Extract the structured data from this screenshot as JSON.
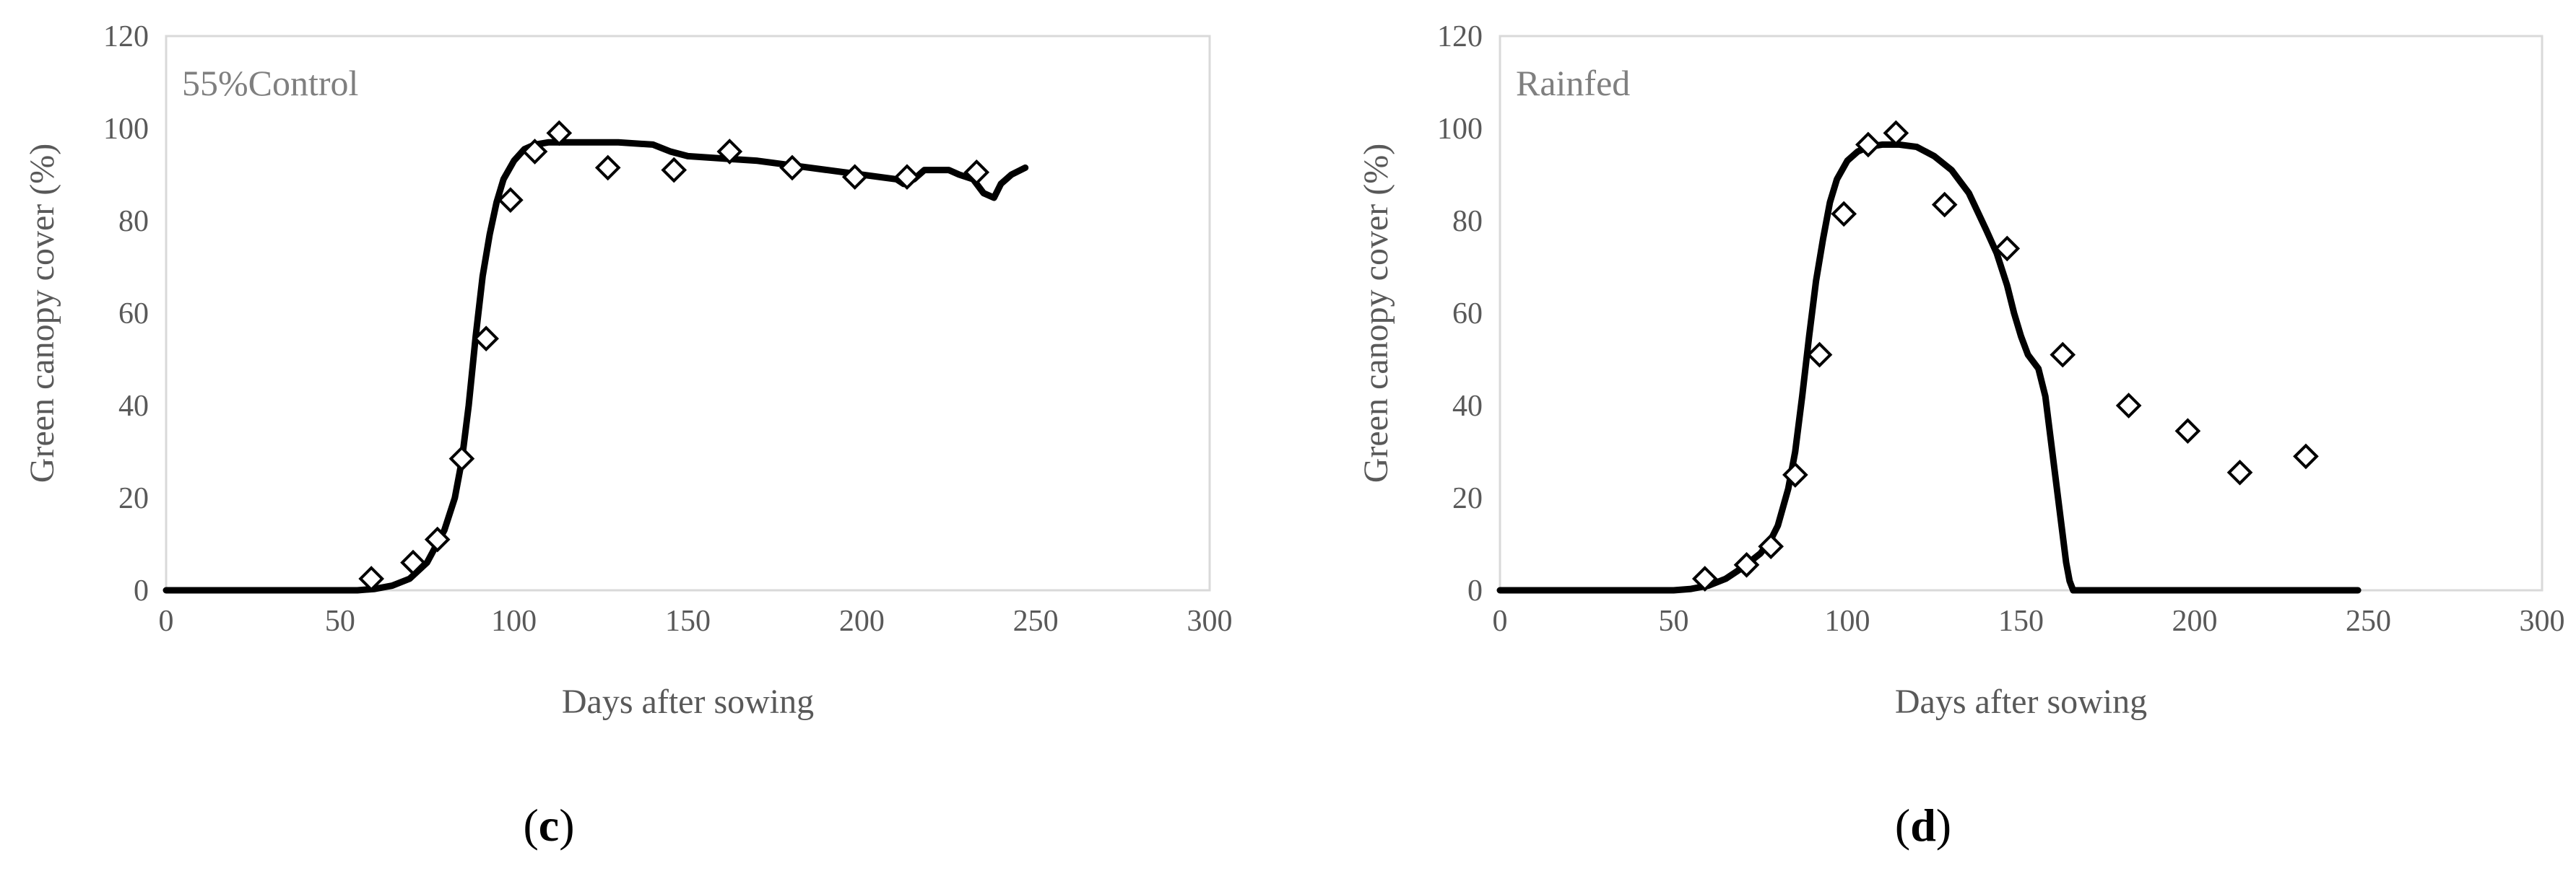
{
  "chart_data": [
    {
      "type": "line",
      "title": "55%Control",
      "panel_label": {
        "open": "(",
        "letter": "c",
        "close": ")"
      },
      "xlabel": "Days after sowing",
      "ylabel": "Green canopy cover (%)",
      "xlim": [
        0,
        300
      ],
      "ylim": [
        0,
        120
      ],
      "xticks": [
        0,
        50,
        100,
        150,
        200,
        250,
        300
      ],
      "yticks": [
        0,
        20,
        40,
        60,
        80,
        100,
        120
      ],
      "grid": false,
      "legend": "none",
      "series": [
        {
          "kind": "line",
          "color": "#000000",
          "x": [
            0,
            55,
            60,
            65,
            70,
            75,
            80,
            83,
            85,
            87,
            89,
            91,
            93,
            95,
            97,
            100,
            103,
            106,
            110,
            115,
            120,
            130,
            140,
            145,
            150,
            160,
            170,
            180,
            190,
            200,
            210,
            212,
            215,
            218,
            220,
            225,
            228,
            232,
            235,
            238,
            240,
            243,
            247
          ],
          "y": [
            0,
            0,
            0.3,
            1,
            2.5,
            6,
            13,
            20,
            28,
            40,
            55,
            68,
            77,
            84,
            89,
            93,
            95.5,
            96.5,
            97,
            97,
            97,
            97,
            96.5,
            95,
            94,
            93.5,
            93,
            92,
            91,
            90,
            89,
            88,
            89,
            91,
            91,
            91,
            90,
            89,
            86,
            85,
            88,
            90,
            91.5
          ]
        },
        {
          "kind": "scatter",
          "marker": "diamond-open",
          "color": "#000000",
          "x": [
            59,
            71,
            78,
            85,
            92,
            99,
            106,
            113,
            127,
            146,
            162,
            180,
            198,
            213,
            233
          ],
          "y": [
            2.5,
            6,
            11,
            28.5,
            54.5,
            84.5,
            95,
            99,
            91.5,
            91,
            95,
            91.5,
            89.5,
            89.5,
            90.5
          ]
        }
      ]
    },
    {
      "type": "line",
      "title": "Rainfed",
      "panel_label": {
        "open": "(",
        "letter": "d",
        "close": ")"
      },
      "xlabel": "Days after sowing",
      "ylabel": "Green canopy cover (%)",
      "xlim": [
        0,
        300
      ],
      "ylim": [
        0,
        120
      ],
      "xticks": [
        0,
        50,
        100,
        150,
        200,
        250,
        300
      ],
      "yticks": [
        0,
        20,
        40,
        60,
        80,
        100,
        120
      ],
      "grid": false,
      "legend": "none",
      "series": [
        {
          "kind": "line",
          "color": "#000000",
          "x": [
            0,
            50,
            55,
            60,
            65,
            70,
            75,
            78,
            80,
            83,
            85,
            87,
            89,
            91,
            93,
            95,
            97,
            100,
            103,
            106,
            110,
            115,
            120,
            125,
            130,
            135,
            140,
            143,
            146,
            148,
            150,
            152,
            155,
            157,
            159,
            161,
            163,
            164,
            165,
            170,
            247
          ],
          "y": [
            0,
            0,
            0.3,
            1,
            2.5,
            5,
            8,
            11,
            14,
            22,
            30,
            42,
            55,
            67,
            76,
            84,
            89,
            93,
            95,
            96,
            96.5,
            96.5,
            96,
            94,
            91,
            86,
            78,
            73,
            66,
            60,
            55,
            51,
            48,
            42,
            30,
            18,
            6,
            2,
            0,
            0,
            0
          ]
        },
        {
          "kind": "scatter",
          "marker": "diamond-open",
          "color": "#000000",
          "x": [
            59,
            71,
            78,
            85,
            92,
            99,
            106,
            114,
            128,
            146,
            162,
            181,
            198,
            213,
            232
          ],
          "y": [
            2.5,
            5.5,
            9.5,
            25,
            51,
            81.5,
            96.5,
            99,
            83.5,
            74,
            51,
            40,
            34.5,
            25.5,
            29
          ]
        }
      ]
    }
  ]
}
